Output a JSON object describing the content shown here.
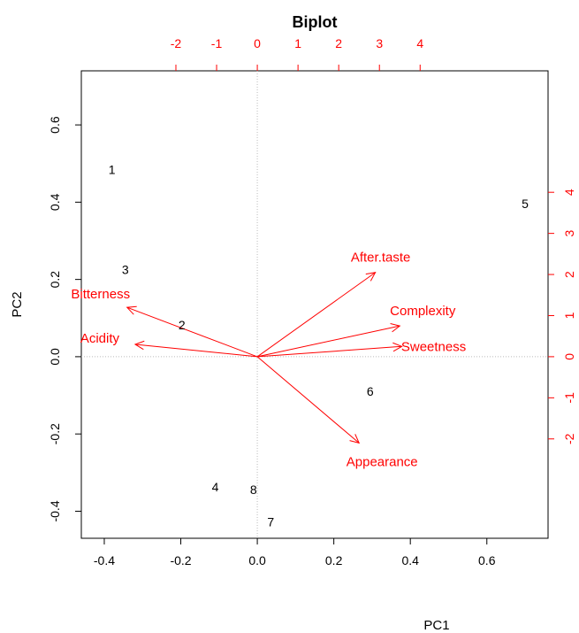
{
  "chart_data": {
    "type": "scatter",
    "title": "Biplot",
    "xlabel": "PC1",
    "ylabel": "PC2",
    "xlim": [
      -0.46,
      0.76
    ],
    "ylim": [
      -0.47,
      0.74
    ],
    "x_ticks": [
      "-0.4",
      "-0.2",
      "0.0",
      "0.2",
      "0.4",
      "0.6"
    ],
    "x_tick_values": [
      -0.4,
      -0.2,
      0.0,
      0.2,
      0.4,
      0.6
    ],
    "y_ticks": [
      "-0.4",
      "-0.2",
      "0.0",
      "0.2",
      "0.4",
      "0.6"
    ],
    "y_tick_values": [
      -0.4,
      -0.2,
      0.0,
      0.2,
      0.4,
      0.6
    ],
    "top_ticks": [
      "-2",
      "-1",
      "0",
      "1",
      "2",
      "3",
      "4"
    ],
    "top_tick_values": [
      -2,
      -1,
      0,
      1,
      2,
      3,
      4
    ],
    "right_ticks": [
      "-2",
      "-1",
      "0",
      "1",
      "2",
      "3",
      "4"
    ],
    "right_tick_values": [
      -2,
      -1,
      0,
      1,
      2,
      3,
      4
    ],
    "secondary_scale": 0.1064,
    "reference_lines": "dotted at 0",
    "observations": [
      {
        "label": "1",
        "x": -0.38,
        "y": 0.485
      },
      {
        "label": "2",
        "x": -0.197,
        "y": 0.082
      },
      {
        "label": "3",
        "x": -0.345,
        "y": 0.225
      },
      {
        "label": "4",
        "x": -0.11,
        "y": -0.337
      },
      {
        "label": "5",
        "x": 0.7,
        "y": 0.396
      },
      {
        "label": "6",
        "x": 0.295,
        "y": -0.09
      },
      {
        "label": "7",
        "x": 0.035,
        "y": -0.428
      },
      {
        "label": "8",
        "x": -0.01,
        "y": -0.344
      }
    ],
    "variables": [
      {
        "label": "After.taste",
        "x": 2.9,
        "y": 2.05
      },
      {
        "label": "Complexity",
        "x": 3.5,
        "y": 0.75
      },
      {
        "label": "Sweetness",
        "x": 3.55,
        "y": 0.25
      },
      {
        "label": "Appearance",
        "x": 2.5,
        "y": -2.1
      },
      {
        "label": "Acidity",
        "x": -3.0,
        "y": 0.3
      },
      {
        "label": "Bitterness",
        "x": -3.2,
        "y": 1.2
      }
    ],
    "colors": {
      "observations": "#000000",
      "variables": "#ff0000",
      "axes": "#000000",
      "reference": "#bbbbbb"
    }
  }
}
